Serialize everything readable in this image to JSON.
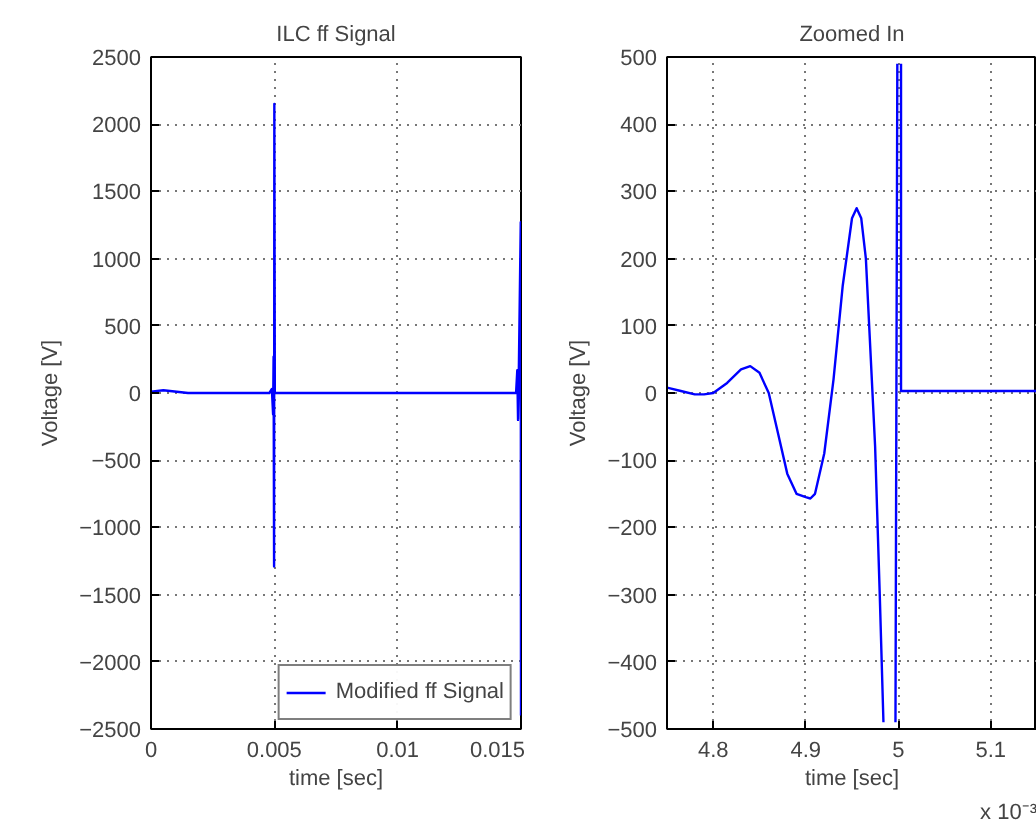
{
  "chart_data": [
    {
      "type": "line",
      "title": "ILC ff Signal",
      "xlabel": "time [sec]",
      "ylabel": "Voltage [V]",
      "xlim": [
        0,
        0.015
      ],
      "ylim": [
        -2500,
        2500
      ],
      "xticks": [
        0,
        0.005,
        0.01,
        0.015
      ],
      "yticks": [
        -2500,
        -2000,
        -1500,
        -1000,
        -500,
        0,
        500,
        1000,
        1500,
        2000,
        2500
      ],
      "grid": true,
      "legend": "bottom right",
      "series": [
        {
          "name": "Modified ff Signal",
          "color": "#0000ff",
          "x": [
            0,
            0.0005,
            0.0015,
            0.0048,
            0.0049,
            0.00495,
            0.00497,
            0.00499,
            0.005,
            0.00502,
            0.0148,
            0.01485,
            0.01488,
            0.0149,
            0.01499,
            0.015
          ],
          "values": [
            10,
            20,
            0,
            0,
            30,
            -160,
            270,
            -1290,
            2150,
            0,
            0,
            170,
            -200,
            0,
            1270,
            -2400
          ]
        }
      ]
    },
    {
      "type": "line",
      "title": "Zoomed In",
      "xlabel": "time [sec]",
      "ylabel": "Voltage [V]",
      "xlim": [
        4.75,
        5.15
      ],
      "ylim": [
        -500,
        500
      ],
      "xticks": [
        4.8,
        4.9,
        5,
        5.1
      ],
      "yticks": [
        -500,
        -400,
        -300,
        -200,
        -100,
        0,
        100,
        200,
        300,
        400,
        500
      ],
      "grid": true,
      "annotations": [
        "x 10⁻³"
      ],
      "series": [
        {
          "color": "#0000ff",
          "x": [
            4.75,
            4.765,
            4.78,
            4.79,
            4.8,
            4.815,
            4.83,
            4.84,
            4.85,
            4.86,
            4.87,
            4.88,
            4.89,
            4.9,
            4.905,
            4.91,
            4.92,
            4.93,
            4.94,
            4.95,
            4.955,
            4.96,
            4.965,
            4.97,
            4.975,
            4.98,
            4.984,
            4.985,
            4.997,
            4.999,
            5.0,
            5.003,
            5.003,
            5.15
          ],
          "values": [
            8,
            3,
            -2,
            -2,
            0,
            15,
            35,
            40,
            30,
            0,
            -60,
            -120,
            -150,
            -155,
            -157,
            -150,
            -90,
            20,
            160,
            260,
            275,
            260,
            200,
            60,
            -80,
            -300,
            -490,
            null,
            -490,
            490,
            null,
            490,
            3,
            3
          ]
        }
      ]
    }
  ]
}
